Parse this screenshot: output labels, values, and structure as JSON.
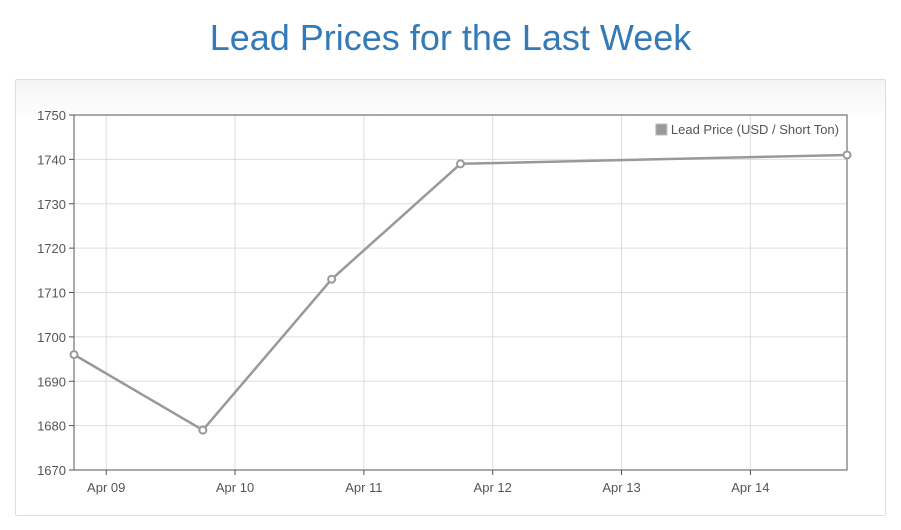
{
  "page": {
    "title": "Lead Prices for the Last Week"
  },
  "chart_data": {
    "type": "line",
    "title": "",
    "xlabel": "",
    "ylabel": "",
    "x_tick_labels": [
      "Apr 09",
      "Apr 10",
      "Apr 11",
      "Apr 12",
      "Apr 13",
      "Apr 14"
    ],
    "y_tick_labels": [
      "1670",
      "1680",
      "1690",
      "1700",
      "1710",
      "1720",
      "1730",
      "1740",
      "1750"
    ],
    "ylim": [
      1670,
      1750
    ],
    "grid": true,
    "legend_position": "top-right",
    "series": [
      {
        "name": "Lead Price (USD / Short Ton)",
        "color": "#999999",
        "points": [
          {
            "x": "Apr 08, 18:00",
            "y": 1696
          },
          {
            "x": "Apr 09, 18:00",
            "y": 1679
          },
          {
            "x": "Apr 10, 18:00",
            "y": 1713
          },
          {
            "x": "Apr 11, 18:00",
            "y": 1739
          },
          {
            "x": "Apr 14, 18:00",
            "y": 1741
          }
        ]
      }
    ]
  }
}
